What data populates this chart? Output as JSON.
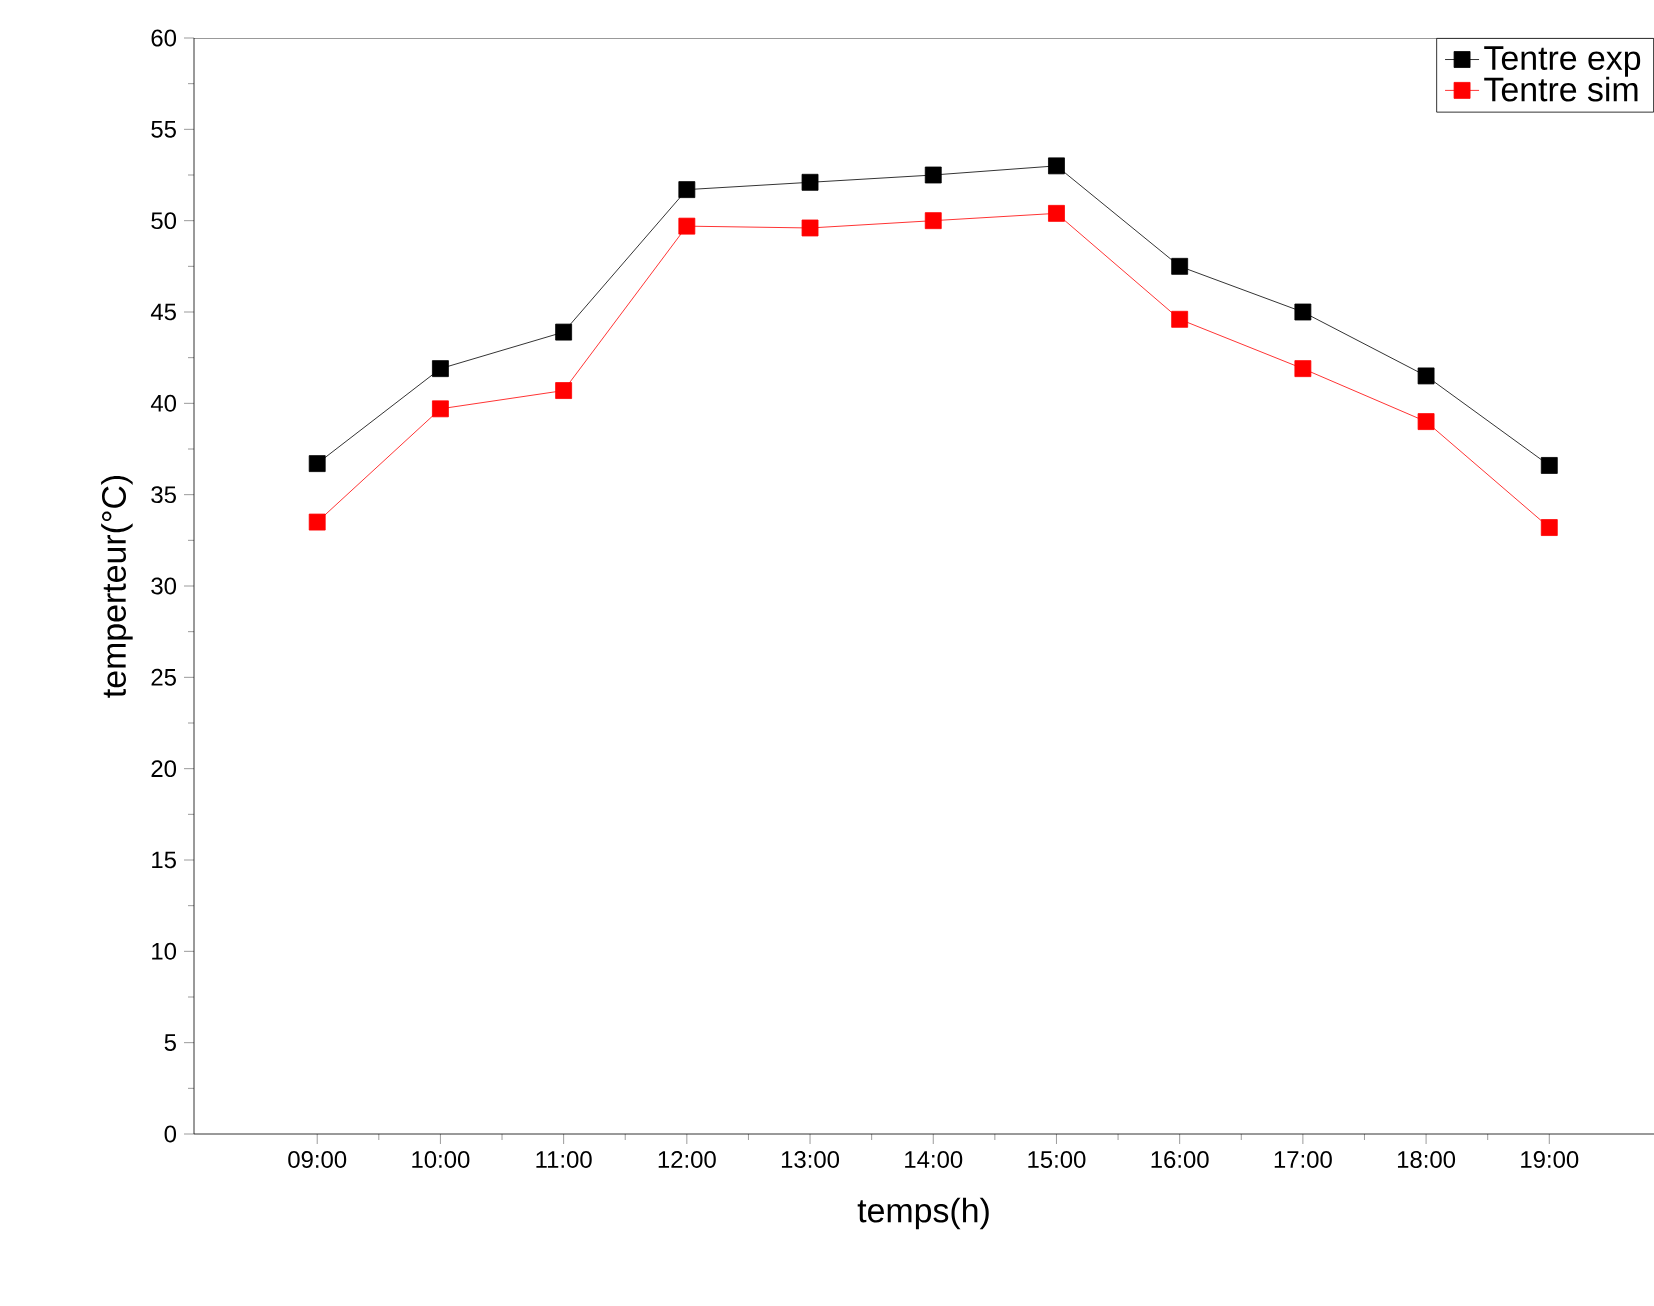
{
  "chart_data": {
    "type": "line",
    "xlabel": "temps(h)",
    "ylabel": "temperteur(°C)",
    "categories": [
      "09:00",
      "10:00",
      "11:00",
      "12:00",
      "13:00",
      "14:00",
      "15:00",
      "16:00",
      "17:00",
      "18:00",
      "19:00"
    ],
    "series": [
      {
        "name": "Tentre exp",
        "color": "#000000",
        "values": [
          36.7,
          41.9,
          43.9,
          51.7,
          52.1,
          52.5,
          53.0,
          47.5,
          45.0,
          41.5,
          36.6
        ]
      },
      {
        "name": "Tentre sim",
        "color": "#ff0000",
        "values": [
          33.5,
          39.7,
          40.7,
          49.7,
          49.6,
          50.0,
          50.4,
          44.6,
          41.9,
          39.0,
          33.2
        ]
      }
    ],
    "ylim": [
      0,
      60
    ],
    "yticks": [
      0,
      5,
      10,
      15,
      20,
      25,
      30,
      35,
      40,
      45,
      50,
      55,
      60
    ],
    "marker": "square",
    "line_style": "solid",
    "legend": "top right",
    "grid": false
  }
}
